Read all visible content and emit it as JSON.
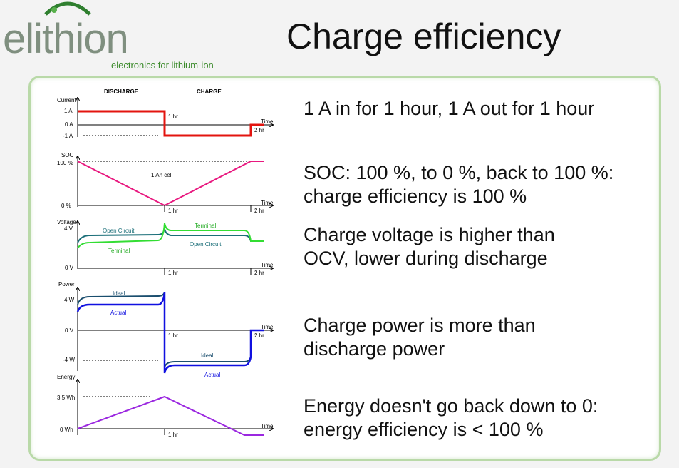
{
  "logo": {
    "brand": "elithion",
    "tagline": "electronics for lithium-ion"
  },
  "title": "Charge efficiency",
  "bullets": [
    [
      "1 A in for 1 hour, 1 A out for 1 hour"
    ],
    [
      "SOC: 100 %, to 0 %, back to 100 %:",
      "charge efficiency is 100 %"
    ],
    [
      "Charge voltage is higher than",
      "OCV, lower during discharge"
    ],
    [
      "Charge power is more than",
      "discharge power"
    ],
    [
      "Energy doesn't go back down to 0:",
      "energy efficiency is < 100 %"
    ]
  ],
  "diagram": {
    "phase_discharge": "DISCHARGE",
    "phase_charge": "CHARGE",
    "time_label": "Time",
    "t1": "1 hr",
    "t2": "2 hr",
    "current": {
      "label": "Current",
      "ticks": [
        "1 A",
        "0 A",
        "-1 A"
      ]
    },
    "soc": {
      "label": "SOC",
      "ticks": [
        "100 %",
        "0 %"
      ],
      "note": "1 Ah cell"
    },
    "voltage": {
      "label": "Voltage",
      "ticks": [
        "4 V",
        "0 V"
      ],
      "ocv": "Open Circuit",
      "terminal": "Terminal"
    },
    "power": {
      "label": "Power",
      "ticks": [
        "4 W",
        "0 V",
        "-4 W"
      ],
      "ideal": "Ideal",
      "actual": "Actual"
    },
    "energy": {
      "label": "Energy",
      "ticks": [
        "3.5 Wh",
        "0 Wh"
      ]
    },
    "colors": {
      "current": "#e3140f",
      "soc": "#e8197f",
      "ocv": "#1a6e78",
      "terminal": "#33dd33",
      "ideal": "#1a4e6e",
      "actual": "#1010e0",
      "energy": "#9b28e0"
    }
  }
}
